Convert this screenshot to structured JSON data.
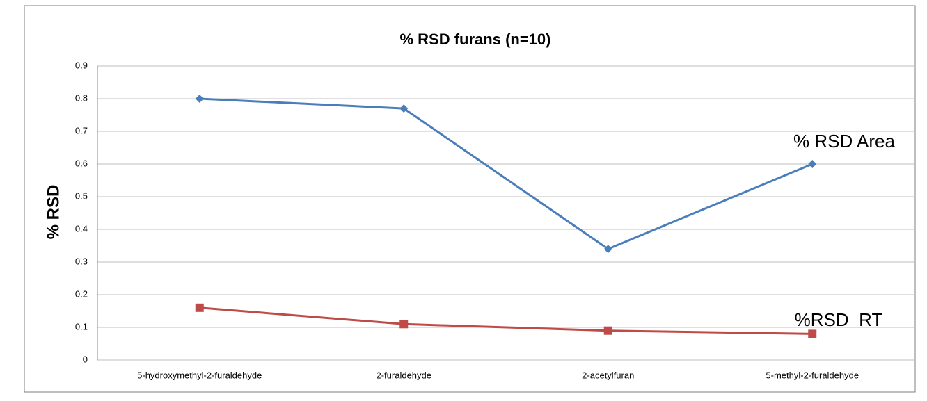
{
  "chart_data": {
    "type": "line",
    "title": "% RSD furans (n=10)",
    "y_label": "% RSD",
    "categories": [
      "5-hydroxymethyl-2-furaldehyde",
      "2-furaldehyde",
      "2-acetylfuran",
      "5-methyl-2-furaldehyde"
    ],
    "series": [
      {
        "name": "% RSD Area",
        "color": "#4a7ebb",
        "marker": "diamond",
        "values": [
          0.8,
          0.77,
          0.34,
          0.6
        ]
      },
      {
        "name": "%RSD  RT",
        "color": "#be4b48",
        "marker": "square",
        "values": [
          0.16,
          0.11,
          0.09,
          0.08
        ]
      }
    ],
    "ylim": [
      0,
      0.9
    ],
    "yticks": [
      0,
      0.1,
      0.2,
      0.3,
      0.4,
      0.5,
      0.6,
      0.7,
      0.8,
      0.9
    ],
    "grid": true
  }
}
